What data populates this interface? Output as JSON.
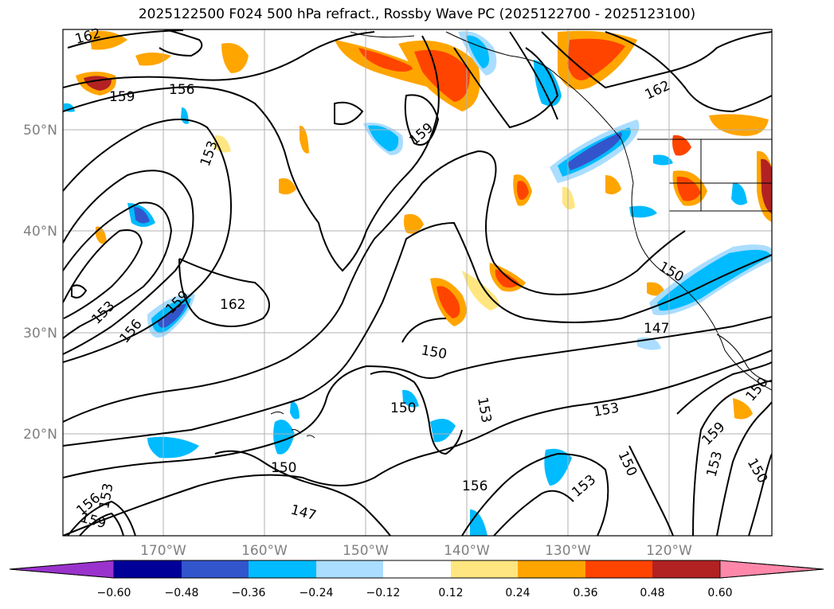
{
  "title": "2025122500 F024 500 hPa refract., Rossby Wave PC (2025122700 - 2025123100)",
  "colors": {
    "land_outline": "#000000",
    "grid": "#b0b0b0",
    "contour": "#000000"
  },
  "map": {
    "lat_labels": [
      "50°N",
      "40°N",
      "30°N",
      "20°N"
    ],
    "lon_labels": [
      "170°W",
      "160°W",
      "150°W",
      "140°W",
      "130°W",
      "120°W"
    ]
  },
  "contour_labels": [
    "162",
    "159",
    "156",
    "153",
    "162",
    "159",
    "153",
    "156",
    "159",
    "162",
    "153",
    "150",
    "150",
    "153",
    "150",
    "156",
    "147",
    "150",
    "153",
    "156",
    "159",
    "153",
    "159",
    "153",
    "150",
    "147",
    "150",
    "150",
    "153",
    "156",
    "162",
    "150"
  ],
  "colorbar": {
    "tick_labels": [
      "−0.60",
      "−0.48",
      "−0.36",
      "−0.24",
      "−0.12",
      "0.12",
      "0.24",
      "0.36",
      "0.48",
      "0.60"
    ],
    "colors": [
      "#9933cc",
      "#000099",
      "#3355cc",
      "#00bbff",
      "#aaddff",
      "#ffffff",
      "#ffe680",
      "#ffa500",
      "#ff4400",
      "#b22222",
      "#ff88aa"
    ]
  }
}
